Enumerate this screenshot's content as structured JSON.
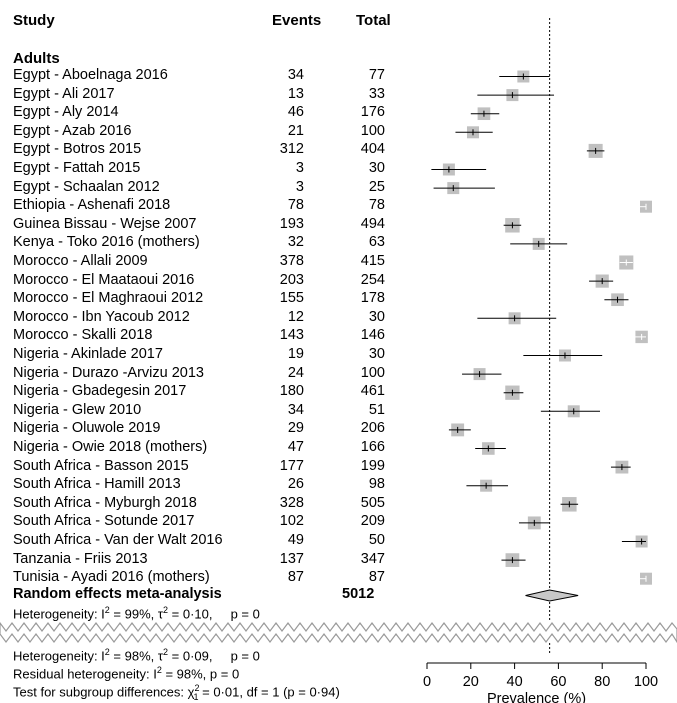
{
  "headers": {
    "study": "Study",
    "events": "Events",
    "total": "Total"
  },
  "group": {
    "name": "Adults"
  },
  "random_effects": {
    "label": "Random effects meta-analysis",
    "total": "5012"
  },
  "heterogeneity": {
    "adults": {
      "prefix": "Heterogeneity: I",
      "i2_value": "= 99%, τ",
      "tau2_value": "= 0·10,",
      "p": "p = 0"
    },
    "overall": {
      "prefix": "Heterogeneity: I",
      "i2_value": "= 98%, τ",
      "tau2_value": "= 0·09,",
      "p": "p = 0"
    },
    "residual": {
      "text": "Residual heterogeneity: I",
      "value": "= 98%, p = 0"
    },
    "subgroup": {
      "text": "Test for subgroup differences: χ",
      "sub": "1",
      "value": "= 0·01, df = 1 (p = 0·94)"
    },
    "sup2": "2"
  },
  "chart_data": {
    "type": "forest",
    "title": "",
    "xlabel": "Prevalence (%)",
    "xlim": [
      0,
      100
    ],
    "xticks": [
      "0",
      "20",
      "40",
      "60",
      "80",
      "100"
    ],
    "tick_values": [
      0,
      20,
      40,
      60,
      80,
      100
    ],
    "reference_line": 56,
    "summary": {
      "estimate": 56,
      "lower": 45,
      "upper": 69
    },
    "studies": [
      {
        "study": "Egypt - Aboelnaga 2016",
        "events": "34",
        "total": "77",
        "est": 44,
        "lo": 33,
        "hi": 56
      },
      {
        "study": "Egypt - Ali 2017",
        "events": "13",
        "total": "33",
        "est": 39,
        "lo": 23,
        "hi": 58
      },
      {
        "study": "Egypt - Aly 2014",
        "events": "46",
        "total": "176",
        "est": 26,
        "lo": 20,
        "hi": 33
      },
      {
        "study": "Egypt - Azab 2016",
        "events": "21",
        "total": "100",
        "est": 21,
        "lo": 13,
        "hi": 30
      },
      {
        "study": "Egypt - Botros 2015",
        "events": "312",
        "total": "404",
        "est": 77,
        "lo": 73,
        "hi": 81
      },
      {
        "study": "Egypt - Fattah 2015",
        "events": "3",
        "total": "30",
        "est": 10,
        "lo": 2,
        "hi": 27
      },
      {
        "study": "Egypt - Schaalan 2012",
        "events": "3",
        "total": "25",
        "est": 12,
        "lo": 3,
        "hi": 31
      },
      {
        "study": "Ethiopia - Ashenafi 2018",
        "events": "78",
        "total": "78",
        "est": 100,
        "lo": 95,
        "hi": 100
      },
      {
        "study": "Guinea Bissau - Wejse 2007",
        "events": "193",
        "total": "494",
        "est": 39,
        "lo": 35,
        "hi": 43
      },
      {
        "study": "Kenya - Toko 2016 (mothers)",
        "events": "32",
        "total": "63",
        "est": 51,
        "lo": 38,
        "hi": 64
      },
      {
        "study": "Morocco - Allali 2009",
        "events": "378",
        "total": "415",
        "est": 91,
        "lo": 88,
        "hi": 94
      },
      {
        "study": "Morocco - El Maataoui 2016",
        "events": "203",
        "total": "254",
        "est": 80,
        "lo": 74,
        "hi": 85
      },
      {
        "study": "Morocco - El Maghraoui 2012",
        "events": "155",
        "total": "178",
        "est": 87,
        "lo": 81,
        "hi": 92
      },
      {
        "study": "Morocco - Ibn Yacoub 2012",
        "events": "12",
        "total": "30",
        "est": 40,
        "lo": 23,
        "hi": 59
      },
      {
        "study": "Morocco - Skalli 2018",
        "events": "143",
        "total": "146",
        "est": 98,
        "lo": 94,
        "hi": 100
      },
      {
        "study": "Nigeria - Akinlade 2017",
        "events": "19",
        "total": "30",
        "est": 63,
        "lo": 44,
        "hi": 80
      },
      {
        "study": "Nigeria - Durazo -Arvizu 2013",
        "events": "24",
        "total": "100",
        "est": 24,
        "lo": 16,
        "hi": 34
      },
      {
        "study": "Nigeria - Gbadegesin 2017",
        "events": "180",
        "total": "461",
        "est": 39,
        "lo": 35,
        "hi": 44
      },
      {
        "study": "Nigeria - Glew 2010",
        "events": "34",
        "total": "51",
        "est": 67,
        "lo": 52,
        "hi": 79
      },
      {
        "study": "Nigeria - Oluwole  2019",
        "events": "29",
        "total": "206",
        "est": 14,
        "lo": 10,
        "hi": 20
      },
      {
        "study": "Nigeria - Owie 2018 (mothers)",
        "events": "47",
        "total": "166",
        "est": 28,
        "lo": 22,
        "hi": 36
      },
      {
        "study": "South Africa - Basson 2015",
        "events": "177",
        "total": "199",
        "est": 89,
        "lo": 84,
        "hi": 93
      },
      {
        "study": "South Africa - Hamill 2013",
        "events": "26",
        "total": "98",
        "est": 27,
        "lo": 18,
        "hi": 37
      },
      {
        "study": "South Africa - Myburgh 2018",
        "events": "328",
        "total": "505",
        "est": 65,
        "lo": 61,
        "hi": 69
      },
      {
        "study": "South Africa - Sotunde 2017",
        "events": "102",
        "total": "209",
        "est": 49,
        "lo": 42,
        "hi": 56
      },
      {
        "study": "South Africa - Van der Walt 2016",
        "events": "49",
        "total": "50",
        "est": 98,
        "lo": 89,
        "hi": 100
      },
      {
        "study": "Tanzania - Friis 2013",
        "events": "137",
        "total": "347",
        "est": 39,
        "lo": 34,
        "hi": 45
      },
      {
        "study": "Tunisia - Ayadi 2016 (mothers)",
        "events": "87",
        "total": "87",
        "est": 100,
        "lo": 96,
        "hi": 100
      }
    ],
    "colors": {
      "box": "#c0c0c0",
      "ci": "#000000",
      "diamond": "#c8c8c8"
    }
  }
}
